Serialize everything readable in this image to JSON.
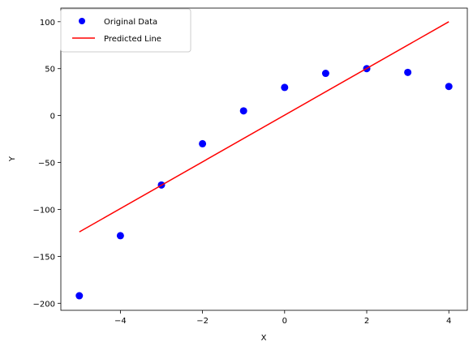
{
  "chart_data": {
    "type": "scatter",
    "xlabel": "X",
    "ylabel": "Y",
    "xlim": [
      -5.45,
      4.45
    ],
    "ylim": [
      -207.5,
      114.5
    ],
    "xticks": [
      -4,
      -2,
      0,
      2,
      4
    ],
    "xtick_labels": [
      "−4",
      "−2",
      "0",
      "2",
      "4"
    ],
    "yticks": [
      -200,
      -150,
      -100,
      -50,
      0,
      50,
      100
    ],
    "ytick_labels": [
      "−200",
      "−150",
      "−100",
      "−50",
      "0",
      "50",
      "100"
    ],
    "grid": false,
    "legend_position": "upper-left",
    "series": [
      {
        "name": "Original Data",
        "kind": "scatter",
        "color": "#0000ff",
        "x": [
          -5,
          -4,
          -3,
          -2,
          -1,
          0,
          1,
          2,
          3,
          4
        ],
        "y": [
          -192,
          -128,
          -74,
          -30,
          5,
          30,
          45,
          50,
          46,
          31
        ]
      },
      {
        "name": "Predicted Line",
        "kind": "line",
        "color": "#ff0000",
        "x": [
          -5,
          4
        ],
        "y": [
          -124,
          100
        ]
      }
    ]
  }
}
